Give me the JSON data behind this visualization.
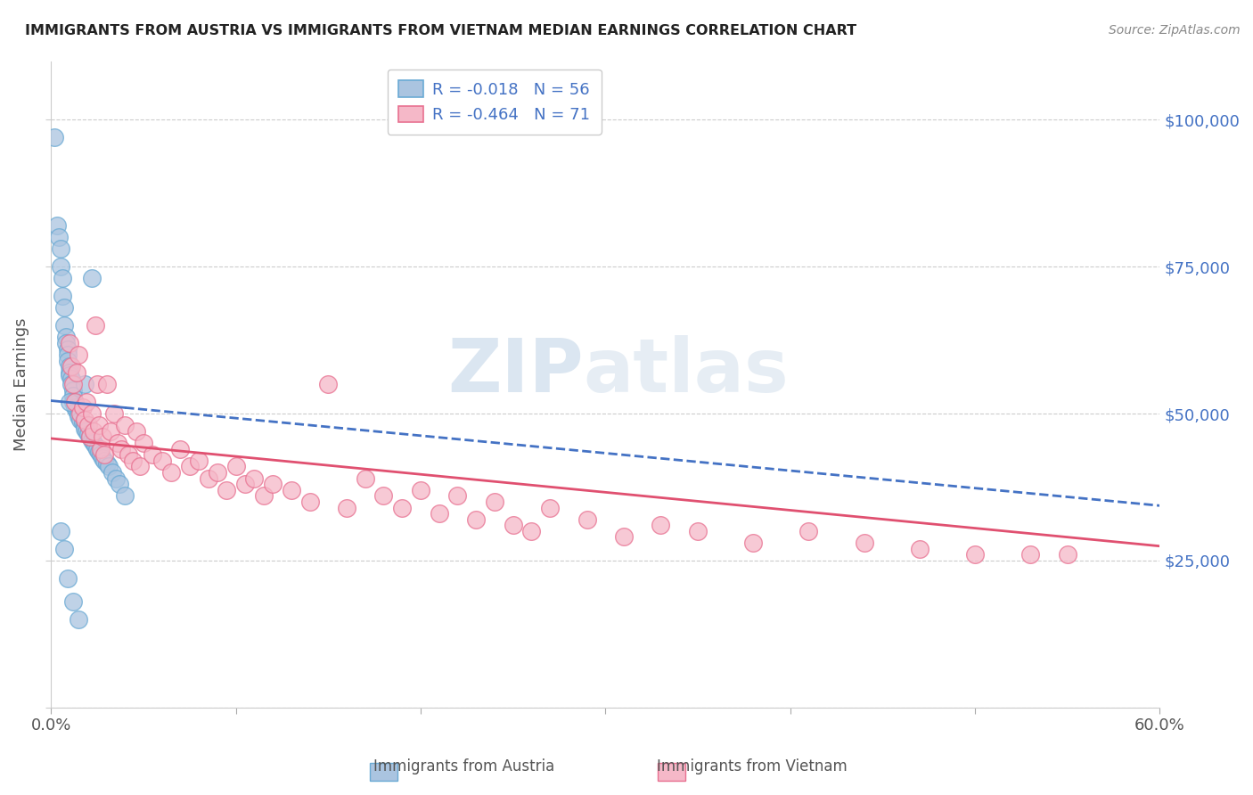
{
  "title": "IMMIGRANTS FROM AUSTRIA VS IMMIGRANTS FROM VIETNAM MEDIAN EARNINGS CORRELATION CHART",
  "source": "Source: ZipAtlas.com",
  "ylabel": "Median Earnings",
  "xlim": [
    0.0,
    0.6
  ],
  "ylim": [
    0,
    110000
  ],
  "yticks": [
    0,
    25000,
    50000,
    75000,
    100000
  ],
  "ytick_labels": [
    "",
    "$25,000",
    "$50,000",
    "$75,000",
    "$100,000"
  ],
  "xticks": [
    0.0,
    0.1,
    0.2,
    0.3,
    0.4,
    0.5,
    0.6
  ],
  "austria_color": "#aac4e0",
  "austria_edge": "#6aaad4",
  "vietnam_color": "#f5b8c8",
  "vietnam_edge": "#e87090",
  "trend_austria_color": "#4472c4",
  "trend_vietnam_color": "#e05070",
  "legend_austria_label": "R = -0.018   N = 56",
  "legend_vietnam_label": "R = -0.464   N = 71",
  "watermark": "ZIPatlas",
  "austria_x": [
    0.002,
    0.003,
    0.004,
    0.005,
    0.005,
    0.006,
    0.006,
    0.007,
    0.007,
    0.008,
    0.008,
    0.009,
    0.009,
    0.009,
    0.01,
    0.01,
    0.01,
    0.011,
    0.011,
    0.012,
    0.012,
    0.012,
    0.013,
    0.013,
    0.014,
    0.015,
    0.015,
    0.016,
    0.017,
    0.018,
    0.018,
    0.019,
    0.02,
    0.021,
    0.022,
    0.023,
    0.024,
    0.025,
    0.026,
    0.027,
    0.028,
    0.029,
    0.03,
    0.031,
    0.033,
    0.035,
    0.037,
    0.04,
    0.005,
    0.007,
    0.009,
    0.012,
    0.015,
    0.018,
    0.01,
    0.022
  ],
  "austria_y": [
    97000,
    82000,
    80000,
    78000,
    75000,
    73000,
    70000,
    68000,
    65000,
    63000,
    62000,
    61000,
    60000,
    59000,
    58000,
    57000,
    56500,
    56000,
    55000,
    54000,
    53000,
    52000,
    51500,
    51000,
    50500,
    50000,
    49500,
    49000,
    48500,
    48000,
    47500,
    47000,
    46500,
    46000,
    45500,
    45000,
    44500,
    44000,
    43500,
    43000,
    42500,
    42000,
    41500,
    41000,
    40000,
    39000,
    38000,
    36000,
    30000,
    27000,
    22000,
    18000,
    15000,
    55000,
    52000,
    73000
  ],
  "vietnam_x": [
    0.01,
    0.011,
    0.012,
    0.013,
    0.014,
    0.015,
    0.016,
    0.017,
    0.018,
    0.019,
    0.02,
    0.021,
    0.022,
    0.023,
    0.024,
    0.025,
    0.026,
    0.027,
    0.028,
    0.029,
    0.03,
    0.032,
    0.034,
    0.036,
    0.038,
    0.04,
    0.042,
    0.044,
    0.046,
    0.048,
    0.05,
    0.055,
    0.06,
    0.065,
    0.07,
    0.075,
    0.08,
    0.085,
    0.09,
    0.095,
    0.1,
    0.105,
    0.11,
    0.115,
    0.12,
    0.13,
    0.14,
    0.15,
    0.16,
    0.17,
    0.18,
    0.19,
    0.2,
    0.21,
    0.22,
    0.23,
    0.24,
    0.25,
    0.26,
    0.27,
    0.29,
    0.31,
    0.33,
    0.35,
    0.38,
    0.41,
    0.44,
    0.47,
    0.5,
    0.53,
    0.55
  ],
  "vietnam_y": [
    62000,
    58000,
    55000,
    52000,
    57000,
    60000,
    50000,
    51000,
    49000,
    52000,
    48000,
    46000,
    50000,
    47000,
    65000,
    55000,
    48000,
    44000,
    46000,
    43000,
    55000,
    47000,
    50000,
    45000,
    44000,
    48000,
    43000,
    42000,
    47000,
    41000,
    45000,
    43000,
    42000,
    40000,
    44000,
    41000,
    42000,
    39000,
    40000,
    37000,
    41000,
    38000,
    39000,
    36000,
    38000,
    37000,
    35000,
    55000,
    34000,
    39000,
    36000,
    34000,
    37000,
    33000,
    36000,
    32000,
    35000,
    31000,
    30000,
    34000,
    32000,
    29000,
    31000,
    30000,
    28000,
    30000,
    28000,
    27000,
    26000,
    26000,
    26000
  ]
}
